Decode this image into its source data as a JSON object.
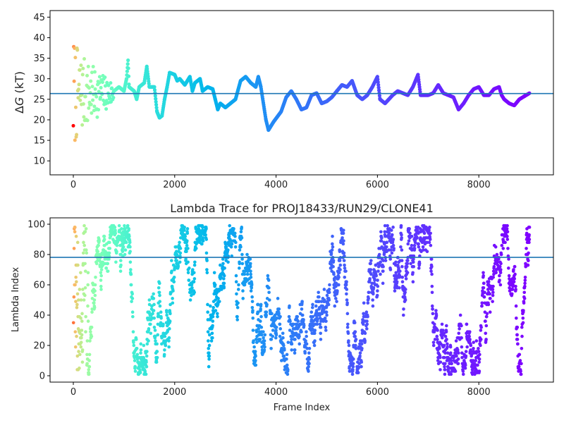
{
  "chart_data": [
    {
      "type": "scatter",
      "title": "",
      "xlabel": "",
      "ylabel_prefix": "Δ",
      "ylabel_var": "G",
      "ylabel_suffix": " (kT)",
      "xlim": [
        -459,
        9472
      ],
      "ylim": [
        6.6,
        46.6
      ],
      "xticks": [
        0,
        2000,
        4000,
        6000,
        8000
      ],
      "yticks": [
        10,
        15,
        20,
        25,
        30,
        35,
        40,
        45
      ],
      "mean_line": 26.4,
      "mean_line_color": "#1f77b4",
      "colormap": "rainbow_reversed_by_frame",
      "early_scatter": {
        "frame_end": 800,
        "center": 26.4,
        "amp_start": 15,
        "amp_end": 3,
        "stride": 8,
        "seed": 7
      },
      "trace": [
        [
          800,
          27
        ],
        [
          900,
          28
        ],
        [
          1000,
          27
        ],
        [
          1050,
          30
        ],
        [
          1080,
          34.5
        ],
        [
          1100,
          28
        ],
        [
          1200,
          27
        ],
        [
          1250,
          25
        ],
        [
          1300,
          28
        ],
        [
          1400,
          29
        ],
        [
          1450,
          33
        ],
        [
          1500,
          28
        ],
        [
          1600,
          28
        ],
        [
          1650,
          22
        ],
        [
          1700,
          20.5
        ],
        [
          1750,
          21
        ],
        [
          1800,
          25
        ],
        [
          1850,
          28
        ],
        [
          1900,
          31.5
        ],
        [
          2000,
          31
        ],
        [
          2050,
          29.5
        ],
        [
          2100,
          30
        ],
        [
          2200,
          28.5
        ],
        [
          2300,
          30.5
        ],
        [
          2350,
          27
        ],
        [
          2400,
          29
        ],
        [
          2500,
          30
        ],
        [
          2550,
          27
        ],
        [
          2650,
          28
        ],
        [
          2750,
          27.5
        ],
        [
          2800,
          25
        ],
        [
          2850,
          22.5
        ],
        [
          2900,
          24
        ],
        [
          3000,
          23
        ],
        [
          3100,
          24
        ],
        [
          3200,
          25
        ],
        [
          3300,
          29.5
        ],
        [
          3400,
          30.5
        ],
        [
          3500,
          29
        ],
        [
          3600,
          28
        ],
        [
          3650,
          30.5
        ],
        [
          3700,
          28
        ],
        [
          3800,
          20
        ],
        [
          3850,
          17.5
        ],
        [
          3950,
          19.5
        ],
        [
          4100,
          22
        ],
        [
          4200,
          25.5
        ],
        [
          4300,
          27
        ],
        [
          4400,
          25
        ],
        [
          4500,
          22.5
        ],
        [
          4600,
          23
        ],
        [
          4700,
          26
        ],
        [
          4800,
          26.5
        ],
        [
          4900,
          24
        ],
        [
          5000,
          24.5
        ],
        [
          5100,
          25.5
        ],
        [
          5200,
          27
        ],
        [
          5300,
          28.5
        ],
        [
          5400,
          28
        ],
        [
          5500,
          29.5
        ],
        [
          5600,
          26
        ],
        [
          5700,
          25
        ],
        [
          5800,
          26
        ],
        [
          5900,
          28
        ],
        [
          6000,
          30.5
        ],
        [
          6050,
          25
        ],
        [
          6150,
          24
        ],
        [
          6300,
          26
        ],
        [
          6400,
          27
        ],
        [
          6500,
          26.5
        ],
        [
          6600,
          26
        ],
        [
          6700,
          28
        ],
        [
          6800,
          31
        ],
        [
          6850,
          26
        ],
        [
          7000,
          26
        ],
        [
          7100,
          26.5
        ],
        [
          7200,
          28.5
        ],
        [
          7300,
          26.5
        ],
        [
          7400,
          26
        ],
        [
          7500,
          25.5
        ],
        [
          7600,
          22.5
        ],
        [
          7700,
          24
        ],
        [
          7800,
          26
        ],
        [
          7900,
          27.5
        ],
        [
          8000,
          28
        ],
        [
          8100,
          26
        ],
        [
          8200,
          26
        ],
        [
          8300,
          27.5
        ],
        [
          8400,
          28
        ],
        [
          8450,
          26
        ],
        [
          8500,
          25
        ],
        [
          8600,
          24
        ],
        [
          8700,
          23.5
        ],
        [
          8800,
          25
        ],
        [
          9000,
          26.5
        ]
      ]
    },
    {
      "type": "scatter",
      "title": "Lambda Trace for PROJ18433/RUN29/CLONE41",
      "xlabel": "Frame Index",
      "ylabel": "Lambda Index",
      "xlim": [
        -459,
        9472
      ],
      "ylim": [
        -4.2,
        104.2
      ],
      "xticks": [
        0,
        2000,
        4000,
        6000,
        8000
      ],
      "yticks": [
        0,
        20,
        40,
        60,
        80,
        100
      ],
      "mean_line": 78.1,
      "mean_line_color": "#1f77b4",
      "lambda_range": [
        1,
        99
      ],
      "n_frames": 9000,
      "walk": {
        "stride": 3,
        "step": 9,
        "seed": 42
      }
    }
  ]
}
